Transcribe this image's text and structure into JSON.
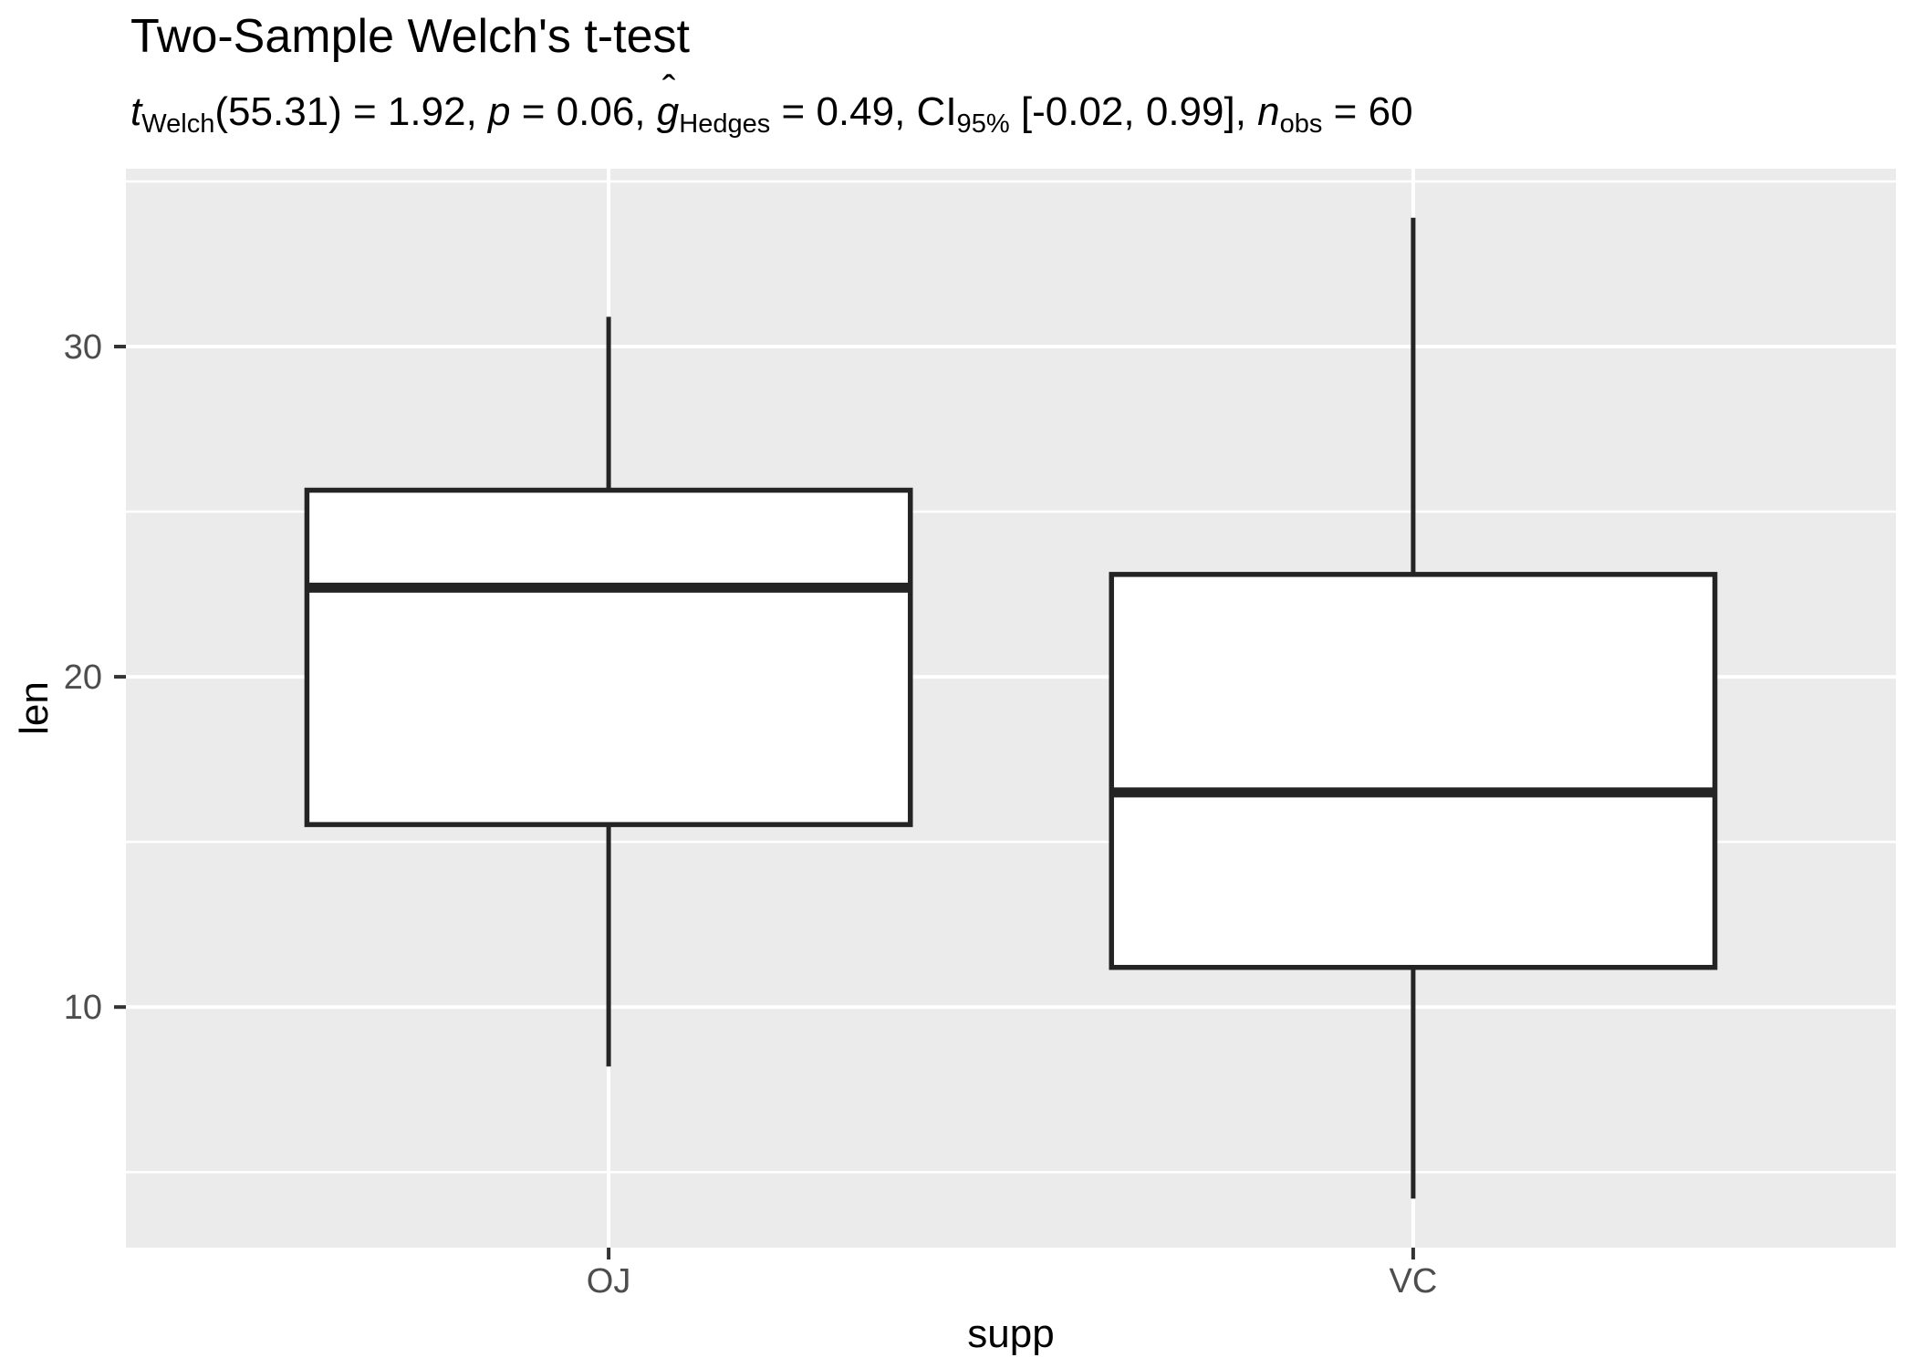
{
  "chart_data": {
    "type": "boxplot",
    "title": "Two-Sample Welch's t-test",
    "subtitle_text": "t_Welch(55.31) = 1.92, p = 0.06, g_Hedges = 0.49, CI_95% [-0.02, 0.99], n_obs = 60",
    "hat_mark": "ˆ",
    "subtitle_segments": [
      {
        "text": "t",
        "italic": true
      },
      {
        "text": "Welch",
        "sub": true
      },
      {
        "text": "(55.31) = 1.92, "
      },
      {
        "text": "p",
        "italic": true
      },
      {
        "text": " = 0.06, "
      },
      {
        "text": "g",
        "italic": true,
        "hat": true
      },
      {
        "text": "Hedges",
        "sub": true
      },
      {
        "text": " = 0.49, CI"
      },
      {
        "text": "95%",
        "sub": true
      },
      {
        "text": " [-0.02, 0.99], "
      },
      {
        "text": "n",
        "italic": true
      },
      {
        "text": "obs",
        "sub": true
      },
      {
        "text": " = 60"
      }
    ],
    "xlabel": "supp",
    "ylabel": "len",
    "categories": [
      "OJ",
      "VC"
    ],
    "series": [
      {
        "name": "OJ",
        "whisker_low": 8.2,
        "q1": 15.525,
        "median": 22.7,
        "q3": 25.65,
        "whisker_high": 30.9
      },
      {
        "name": "VC",
        "whisker_low": 4.2,
        "q1": 11.2,
        "median": 16.5,
        "q3": 23.1,
        "whisker_high": 33.9
      }
    ],
    "y_axis": {
      "ticks": [
        10,
        20,
        30
      ],
      "tick_labels": [
        "10",
        "20",
        "30"
      ],
      "minor_ticks": [
        5,
        15,
        25,
        35
      ],
      "ylim": [
        2.715,
        35.385
      ]
    },
    "x_axis": {
      "tick_labels": [
        "OJ",
        "VC"
      ]
    },
    "legend": "none",
    "grid": true,
    "colors": {
      "background": "#FFFFFF",
      "panel_bg": "#EBEBEB",
      "grid": "#FFFFFF",
      "box_stroke": "#242424",
      "box_fill": "#FFFFFF",
      "tick_mark": "#333333",
      "tick_label": "#4D4D4D",
      "text": "#000000"
    }
  }
}
